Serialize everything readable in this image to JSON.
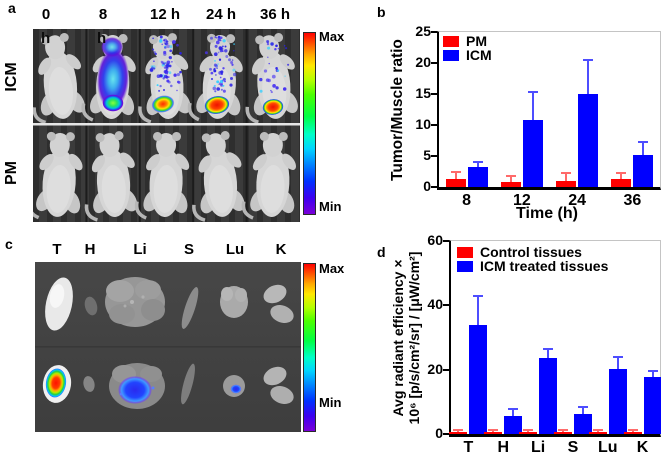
{
  "figure": {
    "panel_a": {
      "letter": "a",
      "time_labels": [
        "0",
        "8",
        "12 h",
        "24 h",
        "36 h"
      ],
      "h_overlays": [
        "h",
        "h"
      ],
      "row_labels": [
        "ICM",
        "PM"
      ],
      "scale_max": "Max",
      "scale_min": "Min"
    },
    "panel_b": {
      "letter": "b"
    },
    "panel_c": {
      "letter": "c",
      "tissue_labels": [
        "T",
        "H",
        "Li",
        "S",
        "Lu",
        "K"
      ],
      "scale_max": "Max",
      "scale_min": "Min"
    },
    "panel_d": {
      "letter": "d"
    }
  },
  "chart_data": [
    {
      "id": "b",
      "type": "bar",
      "title": "",
      "categories": [
        "8",
        "12",
        "24",
        "36"
      ],
      "xlabel": "Time (h)",
      "ylabel": "Tumor/Muscle ratio",
      "ylim": [
        0,
        25
      ],
      "yticks": [
        0,
        5,
        10,
        15,
        20,
        25
      ],
      "grid": false,
      "legend_position": "top-left",
      "series": [
        {
          "name": "PM",
          "color": "#ff0000",
          "error_color": "#ff6a6a",
          "values": [
            1.3,
            0.8,
            1.0,
            1.3
          ],
          "errors": [
            1.2,
            1.0,
            1.2,
            0.9
          ]
        },
        {
          "name": "ICM",
          "color": "#0000ff",
          "error_color": "#4d4dff",
          "values": [
            3.2,
            10.8,
            15.0,
            5.1
          ],
          "errors": [
            0.9,
            4.6,
            5.5,
            2.1
          ]
        }
      ]
    },
    {
      "id": "d",
      "type": "bar",
      "title": "",
      "categories": [
        "T",
        "H",
        "Li",
        "S",
        "Lu",
        "K"
      ],
      "xlabel": "",
      "ylabel_line1": "Avg radiant efficiency ×",
      "ylabel_line2": "10⁶ [p/s/cm²/sr] / [μW/cm²]",
      "ylim": [
        0,
        60
      ],
      "yticks": [
        0,
        20,
        40,
        60
      ],
      "grid": false,
      "legend_position": "top-left",
      "series": [
        {
          "name": "Control tissues",
          "color": "#ff0000",
          "error_color": "#ff6a6a",
          "values": [
            0.7,
            0.7,
            0.7,
            0.7,
            0.7,
            0.7
          ],
          "errors": [
            0.4,
            0.4,
            0.4,
            0.4,
            0.4,
            0.4
          ]
        },
        {
          "name": "ICM treated tissues",
          "color": "#0000ff",
          "error_color": "#4d4dff",
          "values": [
            34,
            5.7,
            23.7,
            6.2,
            20.2,
            17.7
          ],
          "errors": [
            9,
            2.1,
            2.6,
            2.1,
            3.7,
            1.9
          ]
        }
      ]
    }
  ],
  "colors": {
    "series_red": "#ff0000",
    "series_blue": "#0000ff"
  }
}
